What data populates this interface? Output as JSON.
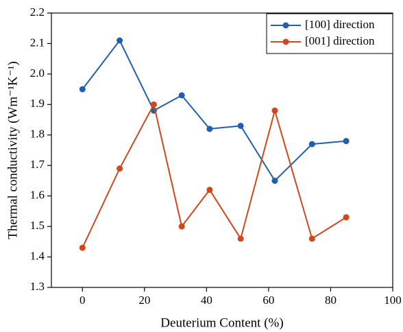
{
  "chart_data": {
    "type": "line",
    "x_label": "Deuterium Content (%)",
    "y_label": "Thermal conductivity (Wm⁻¹K⁻¹)",
    "x": [
      0,
      12,
      23,
      32,
      41,
      51,
      62,
      74,
      85
    ],
    "series": [
      {
        "name": "[100] direction",
        "color": "#1f5fad",
        "values": [
          1.95,
          2.11,
          1.88,
          1.93,
          1.82,
          1.83,
          1.65,
          1.77,
          1.78
        ]
      },
      {
        "name": "[001] direction",
        "color": "#d2461a",
        "values": [
          1.43,
          1.69,
          1.9,
          1.5,
          1.62,
          1.46,
          1.88,
          1.46,
          1.53
        ]
      }
    ],
    "xlim": [
      -10,
      100
    ],
    "xticks": [
      0,
      20,
      40,
      60,
      80,
      100
    ],
    "ylim": [
      1.3,
      2.2
    ],
    "yticks": [
      1.3,
      1.4,
      1.5,
      1.6,
      1.7,
      1.8,
      1.9,
      {
        "value": 2,
        "label": "2.0"
      },
      2.1,
      2.2
    ],
    "legend": "upper right",
    "grid": false
  }
}
